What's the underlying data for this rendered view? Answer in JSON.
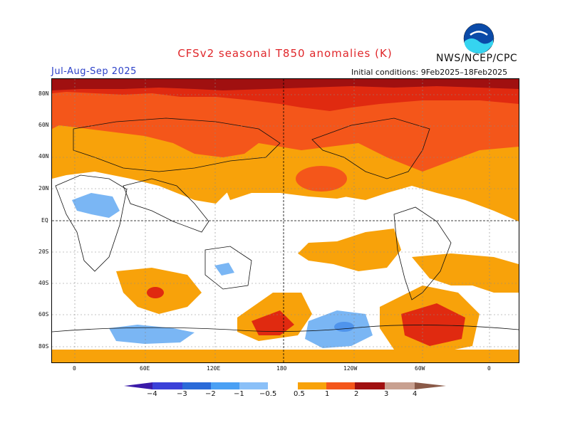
{
  "header": {
    "title": "CFSv2 seasonal T850 anomalies (K)",
    "agency": "NWS/NCEP/CPC",
    "period": "Jul-Aug-Sep 2025",
    "initial_conditions": "Initial conditions:  9Feb2025–18Feb2025",
    "logo_text": "NOAA"
  },
  "map": {
    "lat_labels": [
      "80N",
      "60N",
      "40N",
      "20N",
      "EQ",
      "20S",
      "40S",
      "60S",
      "80S"
    ],
    "lon_labels": [
      "0",
      "60E",
      "120E",
      "180",
      "120W",
      "60W",
      "0"
    ],
    "colors": {
      "ocean": "#ffffff",
      "level_0_5": "#f8a20a",
      "level_1": "#f4561a",
      "level_2": "#e02a10",
      "level_3": "#a01010",
      "level_neg_0_5": "#7ab6f4",
      "level_neg_1": "#4f94ec"
    }
  },
  "legend": {
    "labels": [
      "−4",
      "−3",
      "−2",
      "−1",
      "−0.5",
      "0.5",
      "1",
      "2",
      "3",
      "4"
    ],
    "colors": [
      "#3a1aa8",
      "#3a40d8",
      "#2a6ad8",
      "#4aa0f4",
      "#8ac0f8",
      "#ffffff",
      "#f8a20a",
      "#f4561a",
      "#e02a10",
      "#a01010",
      "#c8a090",
      "#8a5a48"
    ]
  }
}
